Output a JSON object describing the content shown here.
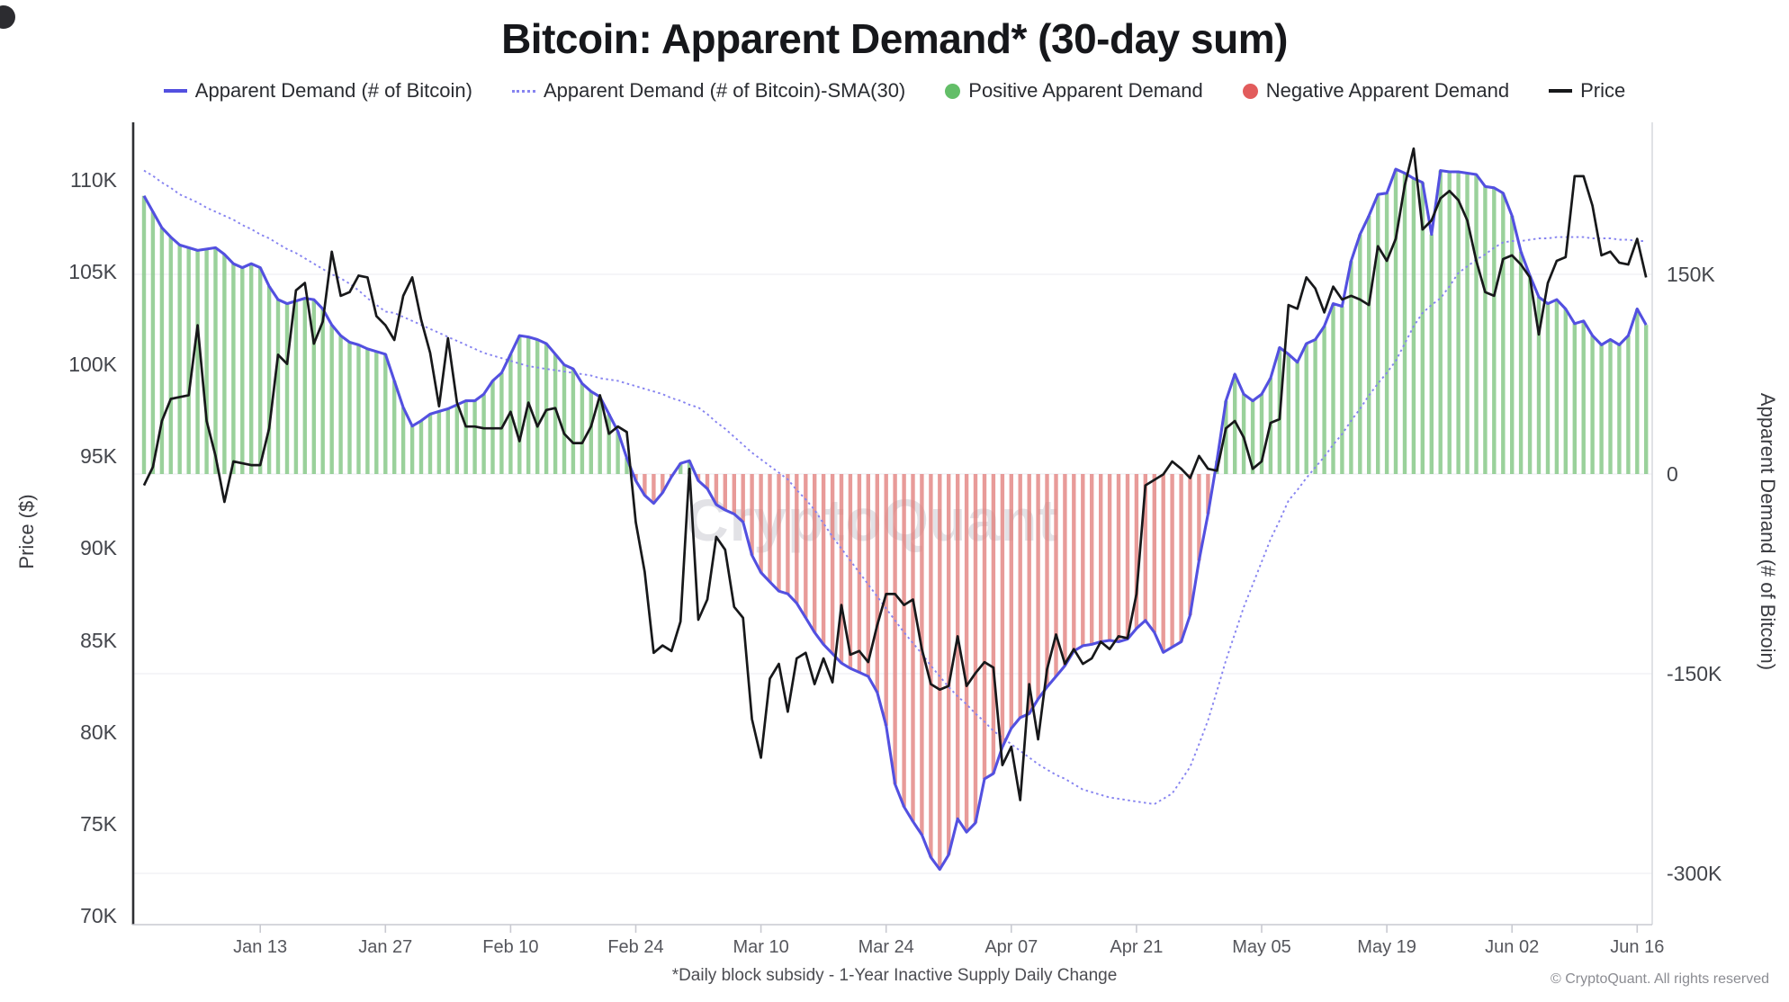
{
  "page": {
    "title": "Bitcoin: Apparent Demand* (30-day sum)",
    "watermark": "CryptoQuant",
    "footnote": "*Daily block subsidy - 1-Year Inactive Supply Daily Change",
    "copyright": "© CryptoQuant. All rights reserved"
  },
  "legend": {
    "items": [
      {
        "label": "Apparent Demand (# of Bitcoin)",
        "swatch": "line",
        "color": "#5350E0"
      },
      {
        "label": "Apparent Demand (# of Bitcoin)-SMA(30)",
        "swatch": "dashed-line",
        "color": "#8683F0"
      },
      {
        "label": "Positive Apparent Demand",
        "swatch": "dot",
        "color": "#63BE68"
      },
      {
        "label": "Negative Apparent Demand",
        "swatch": "dot",
        "color": "#E25C5C"
      },
      {
        "label": "Price",
        "swatch": "line",
        "color": "#17181A"
      }
    ]
  },
  "chart_data": {
    "type": "line+bar",
    "title": "Bitcoin: Apparent Demand* (30-day sum)",
    "date_range": [
      "Dec 31, 2024",
      "Jun 17, 2025"
    ],
    "x_frequency": "daily",
    "grid": "horizontal-faint",
    "x_ticks": [
      {
        "label": "Jan 13",
        "day": 13
      },
      {
        "label": "Jan 27",
        "day": 27
      },
      {
        "label": "Feb 10",
        "day": 41
      },
      {
        "label": "Feb 24",
        "day": 55
      },
      {
        "label": "Mar 10",
        "day": 69
      },
      {
        "label": "Mar 24",
        "day": 83
      },
      {
        "label": "Apr 07",
        "day": 97
      },
      {
        "label": "Apr 21",
        "day": 111
      },
      {
        "label": "May 05",
        "day": 125
      },
      {
        "label": "May 19",
        "day": 139
      },
      {
        "label": "Jun 02",
        "day": 153
      },
      {
        "label": "Jun 16",
        "day": 167
      }
    ],
    "left_axis": {
      "label": "Price ($)",
      "unit": "thousand USD",
      "range": [
        69.5,
        113.0
      ],
      "ticks": [
        {
          "label": "110K",
          "value": 110
        },
        {
          "label": "105K",
          "value": 105
        },
        {
          "label": "100K",
          "value": 100
        },
        {
          "label": "95K",
          "value": 95
        },
        {
          "label": "90K",
          "value": 90
        },
        {
          "label": "85K",
          "value": 85
        },
        {
          "label": "80K",
          "value": 80
        },
        {
          "label": "75K",
          "value": 75
        },
        {
          "label": "70K",
          "value": 70
        }
      ]
    },
    "right_axis": {
      "label": "Apparent Demand (# of Bitcoin)",
      "unit": "thousand BTC",
      "range": [
        -339,
        263
      ],
      "ticks": [
        {
          "label": "150K",
          "value": 150
        },
        {
          "label": "0",
          "value": 0
        },
        {
          "label": "-150K",
          "value": -150
        },
        {
          "label": "-300K",
          "value": -300
        }
      ]
    },
    "bars": {
      "source_series": 0,
      "positive_label": "Positive Apparent Demand",
      "negative_label": "Negative Apparent Demand",
      "positive_color": "#7EC57F",
      "negative_color": "#E2807D"
    },
    "series": [
      {
        "name": "Apparent Demand (# of Bitcoin)",
        "type": "line",
        "style": "solid",
        "axis": "right",
        "color": "#5350E0",
        "unit": "K BTC",
        "values": [
          209,
          197,
          185,
          178,
          172,
          170,
          168,
          169,
          170,
          165,
          158,
          155,
          158,
          155,
          141,
          131,
          128,
          130,
          132,
          131,
          124,
          112,
          104,
          99,
          97,
          94,
          92,
          90,
          70,
          50,
          36,
          40,
          45,
          47,
          49,
          52,
          55,
          55,
          60,
          70,
          76,
          90,
          104,
          103,
          101,
          98,
          90,
          82,
          79,
          68,
          62,
          58,
          45,
          32,
          12,
          -5,
          -16,
          -22,
          -14,
          -2,
          8,
          10,
          -5,
          -11,
          -23,
          -27,
          -30,
          -36,
          -61,
          -74,
          -81,
          -88,
          -90,
          -97,
          -108,
          -119,
          -128,
          -135,
          -142,
          -146,
          -149,
          -152,
          -164,
          -189,
          -233,
          -250,
          -261,
          -271,
          -288,
          -297,
          -286,
          -259,
          -269,
          -262,
          -229,
          -225,
          -205,
          -191,
          -183,
          -180,
          -169,
          -160,
          -152,
          -144,
          -133,
          -129,
          -128,
          -126,
          -125,
          -126,
          -124,
          -116,
          -110,
          -119,
          -134,
          -130,
          -126,
          -106,
          -65,
          -30,
          10,
          55,
          75,
          60,
          55,
          60,
          72,
          95,
          90,
          84,
          98,
          101,
          111,
          128,
          126,
          160,
          180,
          194,
          210,
          211,
          229,
          226,
          222,
          219,
          180,
          228,
          227,
          227,
          226,
          225,
          216,
          215,
          211,
          194,
          167,
          149,
          133,
          128,
          131,
          124,
          113,
          115,
          104,
          97,
          101,
          97,
          104,
          124,
          112
        ]
      },
      {
        "name": "Apparent Demand (# of Bitcoin)-SMA(30)",
        "type": "line",
        "style": "dotted",
        "axis": "right",
        "color": "#8683F0",
        "unit": "K BTC",
        "values": [
          228,
          224,
          219,
          215,
          210,
          207,
          204,
          200,
          197,
          194,
          191,
          187,
          184,
          180,
          177,
          173,
          169,
          166,
          162,
          158,
          154,
          150,
          147,
          143,
          138,
          132,
          127,
          122,
          121,
          118,
          115,
          112,
          109,
          106,
          103,
          100,
          97,
          94,
          91,
          89,
          87,
          85,
          83,
          81,
          80,
          79,
          78,
          77,
          76,
          75,
          74,
          72,
          71,
          70,
          68,
          66,
          64,
          62,
          60,
          57,
          55,
          52,
          50,
          45,
          39,
          34,
          28,
          22,
          16,
          11,
          6,
          1,
          -4,
          -12,
          -19,
          -27,
          -37,
          -47,
          -56,
          -65,
          -74,
          -83,
          -92,
          -101,
          -110,
          -119,
          -127,
          -135,
          -144,
          -152,
          -160,
          -167,
          -173,
          -180,
          -186,
          -193,
          -198,
          -203,
          -208,
          -213,
          -218,
          -222,
          -226,
          -229,
          -233,
          -237,
          -239,
          -241,
          -243,
          -244,
          -245,
          -246,
          -247,
          -248,
          -244,
          -240,
          -230,
          -220,
          -203,
          -185,
          -163,
          -140,
          -120,
          -100,
          -83,
          -66,
          -49,
          -35,
          -20,
          -12,
          -3,
          5,
          13,
          22,
          30,
          40,
          49,
          59,
          68,
          76,
          85,
          98,
          111,
          121,
          127,
          132,
          141,
          151,
          156,
          161,
          165,
          170,
          174,
          175,
          175,
          176,
          177,
          177,
          178,
          178,
          178,
          178,
          177,
          177,
          177,
          176,
          176,
          175,
          175
        ]
      },
      {
        "name": "Price",
        "type": "line",
        "style": "solid",
        "axis": "left",
        "color": "#17181A",
        "unit": "K USD",
        "values": [
          93.4,
          94.4,
          96.9,
          98.1,
          98.2,
          98.3,
          102.1,
          96.9,
          95.0,
          92.5,
          94.7,
          94.6,
          94.5,
          94.5,
          96.5,
          100.5,
          100.0,
          104.0,
          104.4,
          101.1,
          102.3,
          106.1,
          103.7,
          103.9,
          104.8,
          104.7,
          102.6,
          102.1,
          101.3,
          103.7,
          104.7,
          102.4,
          100.6,
          97.7,
          101.4,
          97.9,
          96.6,
          96.6,
          96.5,
          96.5,
          96.5,
          97.4,
          95.8,
          97.9,
          96.6,
          97.5,
          97.6,
          96.2,
          95.7,
          95.7,
          96.6,
          98.3,
          96.2,
          96.6,
          96.3,
          91.4,
          88.7,
          84.3,
          84.7,
          84.4,
          86.0,
          94.3,
          86.1,
          87.2,
          90.6,
          89.9,
          86.8,
          86.2,
          80.7,
          78.6,
          82.9,
          83.7,
          81.1,
          84.0,
          84.3,
          82.6,
          84.0,
          82.7,
          86.9,
          84.2,
          84.4,
          83.8,
          85.8,
          87.5,
          87.5,
          86.9,
          87.2,
          84.5,
          82.6,
          82.3,
          82.5,
          85.2,
          82.5,
          83.2,
          83.8,
          83.5,
          78.2,
          79.2,
          76.3,
          82.6,
          79.6,
          83.4,
          85.3,
          83.7,
          84.5,
          83.7,
          84.0,
          84.9,
          84.5,
          85.2,
          85.1,
          87.5,
          93.4,
          93.7,
          94.0,
          94.7,
          94.3,
          93.8,
          95.0,
          94.3,
          94.2,
          96.5,
          96.9,
          96.0,
          94.3,
          94.7,
          96.8,
          97.0,
          103.2,
          103.0,
          104.7,
          104.1,
          102.8,
          104.2,
          103.5,
          103.7,
          103.5,
          103.2,
          106.4,
          105.6,
          106.8,
          109.7,
          111.7,
          107.3,
          107.8,
          109.0,
          109.4,
          108.9,
          107.8,
          105.6,
          103.9,
          103.7,
          105.7,
          105.9,
          105.4,
          104.7,
          101.6,
          104.4,
          105.6,
          105.8,
          110.2,
          110.2,
          108.6,
          105.9,
          106.1,
          105.5,
          105.4,
          106.8,
          104.7
        ]
      }
    ]
  }
}
